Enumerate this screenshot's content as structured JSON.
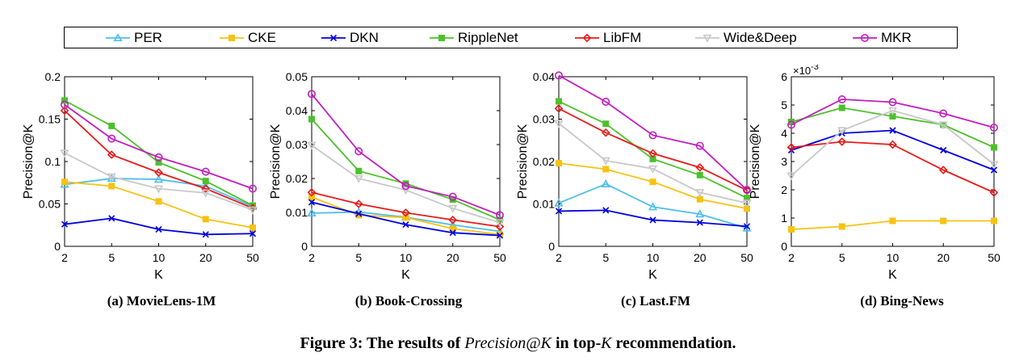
{
  "legend": [
    {
      "name": "PER",
      "color": "#4dbeee",
      "marker": "triangle"
    },
    {
      "name": "CKE",
      "color": "#f7c212",
      "marker": "square"
    },
    {
      "name": "DKN",
      "color": "#0000e0",
      "marker": "x"
    },
    {
      "name": "RippleNet",
      "color": "#4cc12a",
      "marker": "square"
    },
    {
      "name": "LibFM",
      "color": "#e81a1a",
      "marker": "diamond"
    },
    {
      "name": "Wide&Deep",
      "color": "#c8c8c8",
      "marker": "triangle-down"
    },
    {
      "name": "MKR",
      "color": "#c21ebf",
      "marker": "circle"
    }
  ],
  "chart_data": [
    {
      "type": "line",
      "caption": "(a) MovieLens-1M",
      "xlabel": "K",
      "ylabel": "Precision@K",
      "categories": [
        "2",
        "5",
        "10",
        "20",
        "50"
      ],
      "ylim": [
        0,
        0.2
      ],
      "yticks": [
        0,
        0.05,
        0.1,
        0.15,
        0.2
      ],
      "ytick_labels": [
        "0",
        "0.05",
        "0.1",
        "0.15",
        "0.2"
      ],
      "exponent": "",
      "series": [
        {
          "name": "PER",
          "values": [
            0.073,
            0.08,
            0.079,
            0.071,
            0.047
          ]
        },
        {
          "name": "CKE",
          "values": [
            0.076,
            0.071,
            0.053,
            0.032,
            0.022
          ]
        },
        {
          "name": "DKN",
          "values": [
            0.026,
            0.033,
            0.02,
            0.014,
            0.015
          ]
        },
        {
          "name": "RippleNet",
          "values": [
            0.172,
            0.142,
            0.099,
            0.077,
            0.048
          ]
        },
        {
          "name": "LibFM",
          "values": [
            0.16,
            0.108,
            0.087,
            0.068,
            0.045
          ]
        },
        {
          "name": "Wide&Deep",
          "values": [
            0.11,
            0.082,
            0.068,
            0.063,
            0.043
          ]
        },
        {
          "name": "MKR",
          "values": [
            0.167,
            0.127,
            0.105,
            0.088,
            0.068
          ]
        }
      ]
    },
    {
      "type": "line",
      "caption": "(b) Book-Crossing",
      "xlabel": "K",
      "ylabel": "Precision@K",
      "categories": [
        "2",
        "5",
        "10",
        "20",
        "50"
      ],
      "ylim": [
        0,
        0.05
      ],
      "yticks": [
        0,
        0.01,
        0.02,
        0.03,
        0.04,
        0.05
      ],
      "ytick_labels": [
        "0",
        "0.01",
        "0.02",
        "0.03",
        "0.04",
        "0.05"
      ],
      "exponent": "",
      "series": [
        {
          "name": "PER",
          "values": [
            0.0098,
            0.0101,
            0.0086,
            0.0063,
            0.0044
          ]
        },
        {
          "name": "CKE",
          "values": [
            0.0145,
            0.0092,
            0.0085,
            0.0052,
            0.0035
          ]
        },
        {
          "name": "DKN",
          "values": [
            0.013,
            0.0096,
            0.0064,
            0.004,
            0.0032
          ]
        },
        {
          "name": "RippleNet",
          "values": [
            0.0375,
            0.0222,
            0.0185,
            0.0138,
            0.0078
          ]
        },
        {
          "name": "LibFM",
          "values": [
            0.0159,
            0.0125,
            0.0099,
            0.0078,
            0.0058
          ]
        },
        {
          "name": "Wide&Deep",
          "values": [
            0.0298,
            0.02,
            0.0166,
            0.0112,
            0.007
          ]
        },
        {
          "name": "MKR",
          "values": [
            0.0449,
            0.028,
            0.0178,
            0.0146,
            0.0092
          ]
        }
      ]
    },
    {
      "type": "line",
      "caption": "(c) Last.FM",
      "xlabel": "K",
      "ylabel": "Precision@K",
      "categories": [
        "2",
        "5",
        "10",
        "20",
        "50"
      ],
      "ylim": [
        0,
        0.04
      ],
      "yticks": [
        0,
        0.01,
        0.02,
        0.03,
        0.04
      ],
      "ytick_labels": [
        "0",
        "0.01",
        "0.02",
        "0.03",
        "0.04"
      ],
      "exponent": "",
      "series": [
        {
          "name": "PER",
          "values": [
            0.0102,
            0.0147,
            0.0093,
            0.0076,
            0.0043
          ]
        },
        {
          "name": "CKE",
          "values": [
            0.0196,
            0.0182,
            0.0152,
            0.0111,
            0.0089
          ]
        },
        {
          "name": "DKN",
          "values": [
            0.0083,
            0.0085,
            0.0062,
            0.0056,
            0.0047
          ]
        },
        {
          "name": "RippleNet",
          "values": [
            0.0342,
            0.0289,
            0.0206,
            0.0168,
            0.0114
          ]
        },
        {
          "name": "LibFM",
          "values": [
            0.0325,
            0.0268,
            0.0219,
            0.0186,
            0.0132
          ]
        },
        {
          "name": "Wide&Deep",
          "values": [
            0.029,
            0.0202,
            0.0183,
            0.0127,
            0.0102
          ]
        },
        {
          "name": "MKR",
          "values": [
            0.0403,
            0.0341,
            0.0262,
            0.0237,
            0.0133
          ]
        }
      ]
    },
    {
      "type": "line",
      "caption": "(d) Bing-News",
      "xlabel": "K",
      "ylabel": "Precision@K",
      "categories": [
        "2",
        "5",
        "10",
        "20",
        "50"
      ],
      "ylim": [
        0,
        6
      ],
      "yticks": [
        0,
        1,
        2,
        3,
        4,
        5,
        6
      ],
      "ytick_labels": [
        "0",
        "1",
        "2",
        "3",
        "4",
        "5",
        "6"
      ],
      "exponent": "×10-3",
      "series": [
        {
          "name": "CKE",
          "values": [
            0.6,
            0.7,
            0.9,
            0.9,
            0.9
          ]
        },
        {
          "name": "DKN",
          "values": [
            3.4,
            4.0,
            4.1,
            3.4,
            2.7
          ]
        },
        {
          "name": "RippleNet",
          "values": [
            4.4,
            4.9,
            4.6,
            4.3,
            3.5
          ]
        },
        {
          "name": "LibFM",
          "values": [
            3.5,
            3.7,
            3.6,
            2.7,
            1.9
          ]
        },
        {
          "name": "Wide&Deep",
          "values": [
            2.5,
            4.1,
            4.8,
            4.3,
            2.9
          ]
        },
        {
          "name": "MKR",
          "values": [
            4.3,
            5.2,
            5.1,
            4.7,
            4.2
          ]
        }
      ]
    }
  ],
  "figure_caption": {
    "prefix": "Figure 3: The results of ",
    "metric": "Precision@K",
    "middle": " in top-",
    "k": "K",
    "suffix": " recommendation."
  }
}
